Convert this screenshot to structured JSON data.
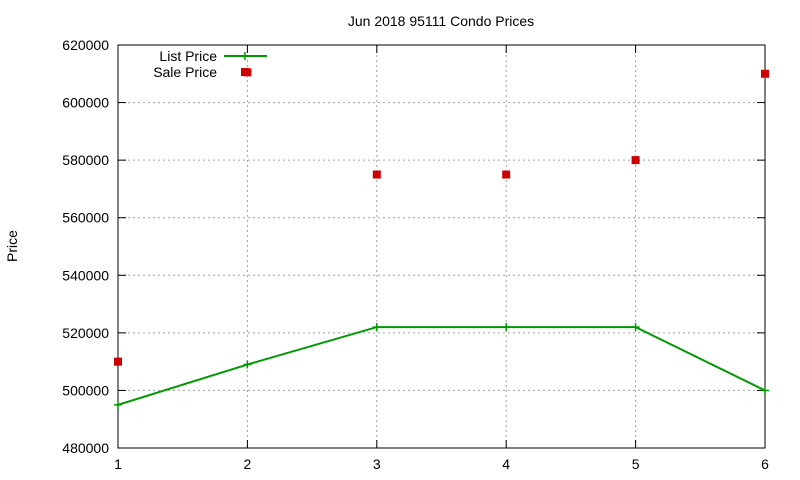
{
  "chart_data": {
    "type": "line",
    "title": "Jun 2018 95111 Condo Prices",
    "xlabel": "",
    "ylabel": "Price",
    "x": [
      1,
      2,
      3,
      4,
      5,
      6
    ],
    "xlim": [
      1,
      6
    ],
    "ylim": [
      480000,
      620000
    ],
    "xticks": [
      "1",
      "2",
      "3",
      "4",
      "5",
      "6"
    ],
    "yticks": [
      "480000",
      "500000",
      "520000",
      "540000",
      "560000",
      "580000",
      "600000",
      "620000"
    ],
    "grid": true,
    "legend_position": "top-left",
    "series": [
      {
        "name": "List Price",
        "kind": "line",
        "color": "#009900",
        "values": [
          495000,
          509000,
          522000,
          522000,
          522000,
          500000
        ]
      },
      {
        "name": "Sale Price",
        "kind": "scatter",
        "color": "#cc0000",
        "values": [
          510000,
          610500,
          575000,
          575000,
          580000,
          610000
        ]
      }
    ]
  }
}
